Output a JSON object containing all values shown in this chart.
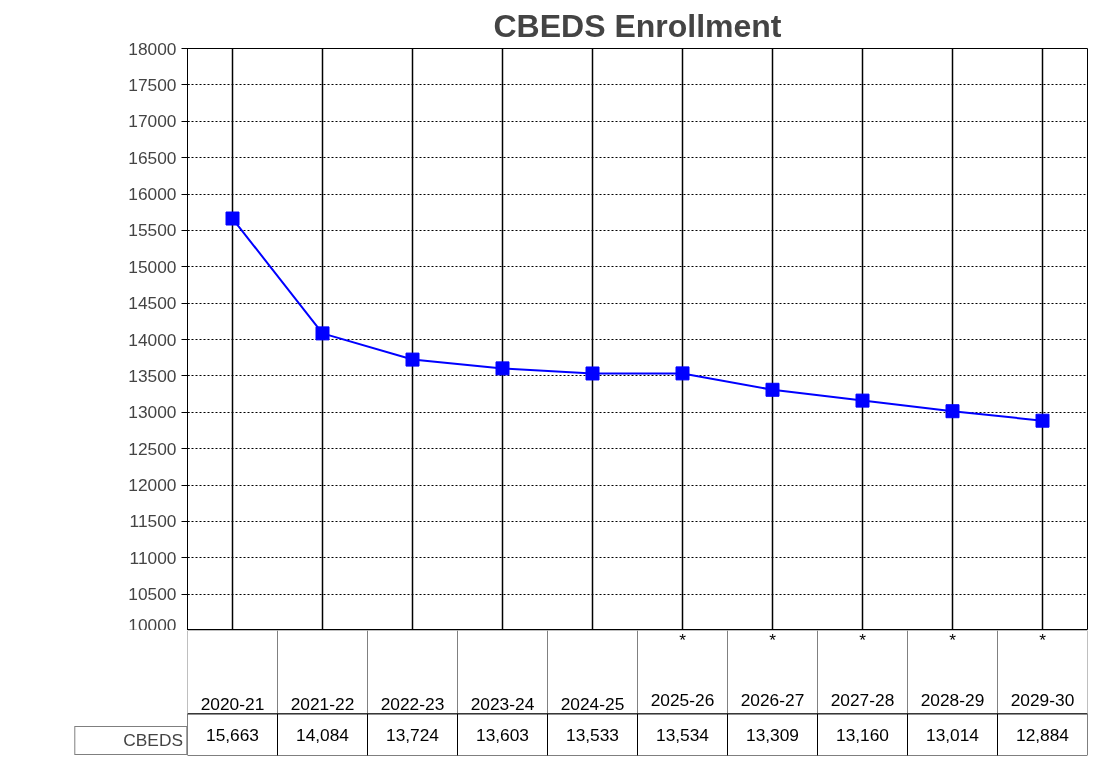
{
  "chart_data": {
    "type": "line",
    "title": "CBEDS Enrollment",
    "categories": [
      "2020-21",
      "2021-22",
      "2022-23",
      "2023-24",
      "2024-25",
      "*\n2025-26",
      "*\n2026-27",
      "*\n2027-28",
      "*\n2028-29",
      "*\n2029-30"
    ],
    "series": [
      {
        "name": "CBEDS",
        "color": "#0000ff",
        "values": [
          15663,
          14084,
          13724,
          13603,
          13533,
          13534,
          13309,
          13160,
          13014,
          12884
        ],
        "value_labels": [
          "15,663",
          "14,084",
          "13,724",
          "13,603",
          "13,533",
          "13,534",
          "13,309",
          "13,160",
          "13,014",
          "12,884"
        ]
      }
    ],
    "ylim": [
      10000,
      18000
    ],
    "yticks": [
      10000,
      10500,
      11000,
      11500,
      12000,
      12500,
      13000,
      13500,
      14000,
      14500,
      15000,
      15500,
      16000,
      16500,
      17000,
      17500,
      18000
    ],
    "grid": true,
    "marker": "square",
    "line_style": "solid",
    "legend": "bottom left"
  }
}
